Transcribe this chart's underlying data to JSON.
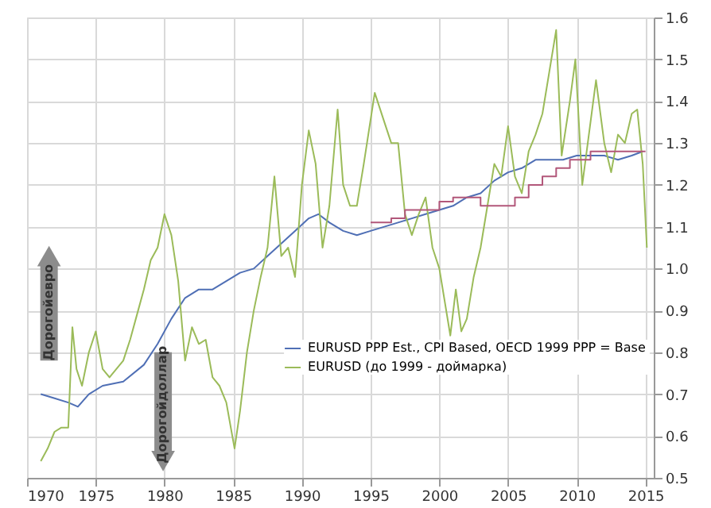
{
  "chart_data": {
    "type": "line",
    "xlim": [
      1970,
      2015.6
    ],
    "xticks": [
      1970,
      1975,
      1980,
      1985,
      1990,
      1995,
      2000,
      2005,
      2010,
      2015
    ],
    "ylim": [
      0.5,
      1.6
    ],
    "yticks": [
      0.5,
      0.6,
      0.7,
      0.8,
      0.9,
      {
        "value": 1.0,
        "label": "1.0"
      },
      1.1,
      1.2,
      1.3,
      1.4,
      1.5,
      1.6
    ],
    "grid": true,
    "legend": "bottom right",
    "marker": "none",
    "line_style": "solid",
    "annotations": [
      "Дорогойевро",
      "Дорогойдоллар"
    ],
    "series": [
      {
        "name": "EURUSD PPP Est., CPI Based,  OECD 1999 PPP = Base",
        "color": "#4f6fb5",
        "x": [
          1971,
          1972,
          1973,
          1973.7,
          1974.5,
          1975.5,
          1977,
          1978.5,
          1979.5,
          1980.5,
          1981.5,
          1982.5,
          1983.5,
          1984.5,
          1985.5,
          1986.5,
          1987.5,
          1988.5,
          1989.5,
          1990.5,
          1991.2,
          1992,
          1993,
          1994,
          1995,
          1996,
          1997,
          1998,
          1999,
          2000,
          2001,
          2002,
          2003,
          2004,
          2005,
          2006,
          2007,
          2008,
          2009,
          2010,
          2011,
          2012,
          2013,
          2014,
          2014.8
        ],
        "values": [
          0.7,
          0.69,
          0.68,
          0.67,
          0.7,
          0.72,
          0.73,
          0.77,
          0.82,
          0.88,
          0.93,
          0.95,
          0.95,
          0.97,
          0.99,
          1.0,
          1.03,
          1.06,
          1.09,
          1.12,
          1.13,
          1.11,
          1.09,
          1.08,
          1.09,
          1.1,
          1.11,
          1.12,
          1.13,
          1.14,
          1.15,
          1.17,
          1.18,
          1.21,
          1.23,
          1.24,
          1.26,
          1.26,
          1.26,
          1.27,
          1.27,
          1.27,
          1.26,
          1.27,
          1.28
        ]
      },
      {
        "name": "EURUSD (до 1999 - доймарка)",
        "color": "#9bbb59",
        "x": [
          1971.0,
          1971.5,
          1972.0,
          1972.5,
          1973.0,
          1973.3,
          1973.6,
          1974.0,
          1974.5,
          1975.0,
          1975.5,
          1976.0,
          1976.5,
          1977.0,
          1977.5,
          1978.0,
          1978.5,
          1979.0,
          1979.5,
          1980.0,
          1980.5,
          1981.0,
          1981.5,
          1982.0,
          1982.5,
          1983.0,
          1983.5,
          1984.0,
          1984.5,
          1985.1,
          1985.5,
          1986.0,
          1986.5,
          1987.0,
          1987.5,
          1988.0,
          1988.5,
          1989.0,
          1989.5,
          1990.0,
          1990.5,
          1991.0,
          1991.5,
          1992.0,
          1992.6,
          1993.0,
          1993.5,
          1994.0,
          1994.5,
          1995.3,
          1996.0,
          1996.5,
          1997.0,
          1997.5,
          1998.0,
          1998.5,
          1999.0,
          1999.5,
          2000.0,
          2000.8,
          2001.2,
          2001.6,
          2002.0,
          2002.5,
          2003.0,
          2003.5,
          2004.0,
          2004.5,
          2005.0,
          2005.5,
          2006.0,
          2006.5,
          2007.0,
          2007.5,
          2008.0,
          2008.5,
          2008.9,
          2009.5,
          2009.9,
          2010.4,
          2011.0,
          2011.4,
          2012.0,
          2012.5,
          2013.0,
          2013.5,
          2014.0,
          2014.4,
          2014.8,
          2015.1
        ],
        "values": [
          0.54,
          0.57,
          0.61,
          0.62,
          0.62,
          0.86,
          0.76,
          0.72,
          0.8,
          0.85,
          0.76,
          0.74,
          0.76,
          0.78,
          0.83,
          0.89,
          0.95,
          1.02,
          1.05,
          1.13,
          1.08,
          0.97,
          0.78,
          0.86,
          0.82,
          0.83,
          0.74,
          0.72,
          0.68,
          0.57,
          0.66,
          0.8,
          0.9,
          0.98,
          1.05,
          1.22,
          1.03,
          1.05,
          0.98,
          1.2,
          1.33,
          1.25,
          1.05,
          1.15,
          1.38,
          1.2,
          1.15,
          1.15,
          1.25,
          1.42,
          1.35,
          1.3,
          1.3,
          1.13,
          1.08,
          1.13,
          1.17,
          1.05,
          1.0,
          0.84,
          0.95,
          0.85,
          0.88,
          0.98,
          1.05,
          1.15,
          1.25,
          1.22,
          1.34,
          1.22,
          1.18,
          1.28,
          1.32,
          1.37,
          1.47,
          1.57,
          1.27,
          1.4,
          1.5,
          1.2,
          1.35,
          1.45,
          1.3,
          1.23,
          1.32,
          1.3,
          1.37,
          1.38,
          1.25,
          1.05
        ]
      },
      {
        "type": "step",
        "color": "#b2577a",
        "x": [
          1995,
          1996.5,
          1997.5,
          1999,
          2000,
          2001,
          2003,
          2004.5,
          2005.5,
          2006.5,
          2007.5,
          2008.5,
          2009.5,
          2011,
          2015
        ],
        "values": [
          1.11,
          1.12,
          1.14,
          1.14,
          1.16,
          1.17,
          1.15,
          1.15,
          1.17,
          1.2,
          1.22,
          1.24,
          1.26,
          1.28,
          1.28
        ]
      }
    ]
  }
}
